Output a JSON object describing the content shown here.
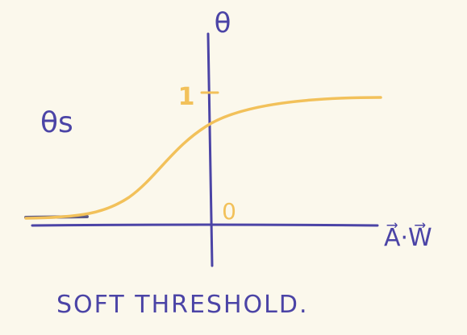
{
  "labels": {
    "y_axis": "θ",
    "x_axis": "A⃗·W⃗",
    "curve_label": "θs",
    "tick_one": "1",
    "tick_zero": "0",
    "caption": "SOFT THRESHOLD."
  },
  "colors": {
    "ink": "#4b44a6",
    "curve": "#f2c15a",
    "paper": "#fbf8ec"
  }
}
